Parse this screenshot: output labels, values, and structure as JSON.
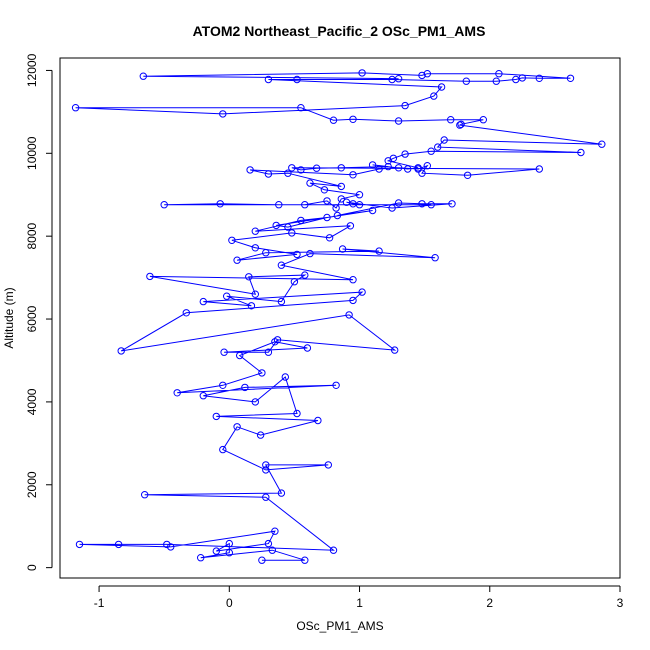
{
  "chart_data": {
    "type": "scatter",
    "title": "ATOM2 Northeast_Pacific_2 OSc_PM1_AMS",
    "xlabel": "OSc_PM1_AMS",
    "ylabel": "Altitude (m)",
    "xlim": [
      -1.3,
      3.0
    ],
    "ylim": [
      -250,
      12300
    ],
    "xticks": [
      -1,
      0,
      1,
      2,
      3
    ],
    "yticks": [
      0,
      2000,
      4000,
      6000,
      8000,
      10000,
      12000
    ],
    "xtick_labels": [
      "-1",
      "0",
      "1",
      "2",
      "3"
    ],
    "ytick_labels": [
      "0",
      "2000",
      "4000",
      "6000",
      "8000",
      "10000",
      "12000"
    ],
    "grid": false,
    "legend": "none",
    "series": [
      {
        "color": "#0000ff",
        "marker": "open-circle",
        "connected": true,
        "points": [
          [
            0.25,
            180
          ],
          [
            0.58,
            180
          ],
          [
            0.33,
            420
          ],
          [
            -0.22,
            240
          ],
          [
            0.0,
            360
          ],
          [
            0.0,
            580
          ],
          [
            -0.1,
            400
          ],
          [
            0.3,
            580
          ],
          [
            0.35,
            880
          ],
          [
            -0.45,
            500
          ],
          [
            -1.15,
            560
          ],
          [
            -0.85,
            560
          ],
          [
            -0.48,
            560
          ],
          [
            0.8,
            420
          ],
          [
            0.28,
            1700
          ],
          [
            -0.65,
            1760
          ],
          [
            0.4,
            1800
          ],
          [
            0.28,
            2480
          ],
          [
            0.76,
            2480
          ],
          [
            0.28,
            2360
          ],
          [
            -0.05,
            2850
          ],
          [
            0.06,
            3400
          ],
          [
            0.24,
            3200
          ],
          [
            0.68,
            3550
          ],
          [
            -0.1,
            3650
          ],
          [
            0.52,
            3720
          ],
          [
            0.43,
            4600
          ],
          [
            0.2,
            4000
          ],
          [
            -0.2,
            4150
          ],
          [
            0.12,
            4350
          ],
          [
            0.82,
            4400
          ],
          [
            -0.4,
            4220
          ],
          [
            -0.05,
            4400
          ],
          [
            0.25,
            4700
          ],
          [
            0.08,
            5120
          ],
          [
            0.35,
            5450
          ],
          [
            0.6,
            5300
          ],
          [
            -0.04,
            5200
          ],
          [
            0.3,
            5200
          ],
          [
            0.37,
            5500
          ],
          [
            1.27,
            5250
          ],
          [
            0.92,
            6100
          ],
          [
            -0.83,
            5230
          ],
          [
            -0.33,
            6150
          ],
          [
            0.95,
            6450
          ],
          [
            1.02,
            6650
          ],
          [
            -0.2,
            6420
          ],
          [
            0.17,
            6320
          ],
          [
            -0.02,
            6550
          ],
          [
            0.4,
            6420
          ],
          [
            0.5,
            6900
          ],
          [
            0.58,
            7060
          ],
          [
            0.15,
            7020
          ],
          [
            0.2,
            6600
          ],
          [
            -0.61,
            7030
          ],
          [
            0.95,
            6950
          ],
          [
            0.4,
            7300
          ],
          [
            0.62,
            7580
          ],
          [
            1.58,
            7480
          ],
          [
            0.87,
            7690
          ],
          [
            1.15,
            7640
          ],
          [
            0.28,
            7600
          ],
          [
            0.06,
            7420
          ],
          [
            0.52,
            7560
          ],
          [
            0.2,
            7720
          ],
          [
            0.02,
            7900
          ],
          [
            0.48,
            8080
          ],
          [
            0.77,
            7960
          ],
          [
            0.93,
            8250
          ],
          [
            0.2,
            8120
          ],
          [
            0.55,
            8380
          ],
          [
            0.75,
            8450
          ],
          [
            0.45,
            8220
          ],
          [
            0.36,
            8260
          ],
          [
            1.1,
            8620
          ],
          [
            0.83,
            8500
          ],
          [
            1.3,
            8800
          ],
          [
            1.48,
            8780
          ],
          [
            1.71,
            8780
          ],
          [
            1.25,
            8680
          ],
          [
            0.9,
            8820
          ],
          [
            0.95,
            8780
          ],
          [
            1.0,
            8760
          ],
          [
            1.55,
            8760
          ],
          [
            -0.5,
            8760
          ],
          [
            -0.07,
            8780
          ],
          [
            0.38,
            8760
          ],
          [
            0.58,
            8760
          ],
          [
            0.75,
            8850
          ],
          [
            0.82,
            8680
          ],
          [
            0.86,
            8900
          ],
          [
            1.0,
            9000
          ],
          [
            0.73,
            9120
          ],
          [
            0.62,
            9280
          ],
          [
            0.86,
            9200
          ],
          [
            0.45,
            9520
          ],
          [
            0.3,
            9500
          ],
          [
            0.16,
            9600
          ],
          [
            0.95,
            9480
          ],
          [
            1.15,
            9620
          ],
          [
            1.3,
            9650
          ],
          [
            1.45,
            9620
          ],
          [
            1.52,
            9700
          ],
          [
            1.48,
            9520
          ],
          [
            1.83,
            9470
          ],
          [
            2.38,
            9620
          ],
          [
            0.48,
            9650
          ],
          [
            0.55,
            9600
          ],
          [
            0.67,
            9640
          ],
          [
            0.86,
            9650
          ],
          [
            1.22,
            9680
          ],
          [
            1.1,
            9720
          ],
          [
            1.37,
            9620
          ],
          [
            1.45,
            9650
          ],
          [
            1.22,
            9820
          ],
          [
            1.26,
            9880
          ],
          [
            1.35,
            9980
          ],
          [
            1.55,
            10050
          ],
          [
            2.7,
            10020
          ],
          [
            1.6,
            10150
          ],
          [
            1.65,
            10320
          ],
          [
            2.86,
            10220
          ],
          [
            1.77,
            10680
          ],
          [
            1.78,
            10700
          ],
          [
            1.95,
            10810
          ],
          [
            1.7,
            10810
          ],
          [
            1.3,
            10780
          ],
          [
            0.95,
            10820
          ],
          [
            0.8,
            10800
          ],
          [
            0.55,
            11100
          ],
          [
            -1.18,
            11100
          ],
          [
            -0.05,
            10950
          ],
          [
            1.35,
            11150
          ],
          [
            1.57,
            11380
          ],
          [
            1.63,
            11600
          ],
          [
            0.3,
            11780
          ],
          [
            0.52,
            11780
          ],
          [
            1.25,
            11780
          ],
          [
            1.82,
            11740
          ],
          [
            2.05,
            11740
          ],
          [
            2.2,
            11780
          ],
          [
            2.25,
            11820
          ],
          [
            2.38,
            11810
          ],
          [
            2.62,
            11810
          ],
          [
            2.07,
            11920
          ],
          [
            1.52,
            11920
          ],
          [
            1.48,
            11880
          ],
          [
            1.02,
            11940
          ],
          [
            -0.66,
            11860
          ],
          [
            1.3,
            11800
          ]
        ]
      }
    ]
  }
}
